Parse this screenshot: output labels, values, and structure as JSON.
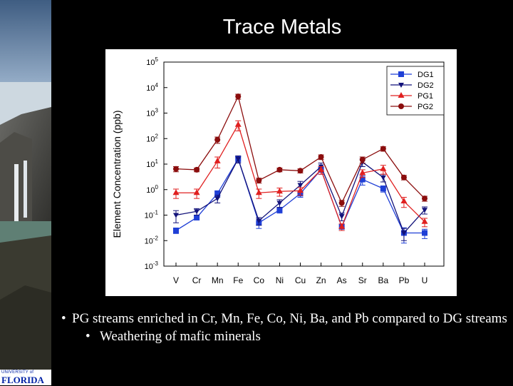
{
  "slide": {
    "title": "Trace Metals",
    "bullets": [
      {
        "level": 1,
        "text": "PG streams enriched in Cr, Mn, Fe, Co, Ni, Ba, and Pb compared to DG streams"
      },
      {
        "level": 2,
        "text": "Weathering of mafic minerals"
      }
    ],
    "logo": {
      "line1": "UNIVERSITY of",
      "line2": "FLORIDA"
    }
  },
  "chart_data": {
    "type": "line",
    "title": "",
    "xlabel": "",
    "ylabel": "Element Concentration (ppb)",
    "yscale": "log",
    "ylim": [
      0.001,
      100000
    ],
    "ytick_exponents": [
      "5",
      "4",
      "3",
      "2",
      "1",
      "0",
      "-1",
      "-2",
      "-3"
    ],
    "categories": [
      "V",
      "Cr",
      "Mn",
      "Fe",
      "Co",
      "Ni",
      "Cu",
      "Zn",
      "As",
      "Sr",
      "Ba",
      "Pb",
      "U"
    ],
    "legend_position": "top-right",
    "grid": false,
    "series": [
      {
        "name": "DG1",
        "color": "#1f3fd6",
        "marker": "square",
        "values": [
          0.025,
          0.08,
          0.7,
          16,
          0.05,
          0.16,
          0.7,
          6,
          0.035,
          2.5,
          1.1,
          0.02,
          0.02
        ],
        "error": [
          0.006,
          0.015,
          0.2,
          4,
          0.02,
          0.04,
          0.2,
          2,
          0.01,
          1.0,
          0.3,
          0.012,
          0.008
        ]
      },
      {
        "name": "DG2",
        "color": "#12127a",
        "marker": "triangle-down",
        "values": [
          0.1,
          0.14,
          0.45,
          16,
          0.06,
          0.3,
          1.5,
          8,
          0.09,
          12,
          3,
          0.02,
          0.16
        ],
        "error": [
          0.05,
          0.04,
          0.15,
          5,
          0.02,
          0.1,
          0.6,
          3,
          0.03,
          4,
          1,
          0.01,
          0.05
        ]
      },
      {
        "name": "PG1",
        "color": "#e02020",
        "marker": "triangle-up",
        "values": [
          0.75,
          0.75,
          13,
          350,
          0.75,
          0.85,
          0.9,
          6,
          0.035,
          4.5,
          6.5,
          0.35,
          0.055
        ],
        "error": [
          0.3,
          0.3,
          6,
          150,
          0.3,
          0.3,
          0.3,
          2,
          0.01,
          1.5,
          2.5,
          0.15,
          0.02
        ]
      },
      {
        "name": "PG2",
        "color": "#8b0d0d",
        "marker": "circle",
        "values": [
          6.5,
          6,
          90,
          4500,
          2.3,
          6,
          5.5,
          19,
          0.3,
          15,
          40,
          3,
          0.45
        ],
        "error": [
          1.5,
          1,
          25,
          1000,
          0.5,
          1,
          1,
          4,
          0.08,
          4,
          8,
          0.6,
          0.1
        ]
      }
    ]
  }
}
